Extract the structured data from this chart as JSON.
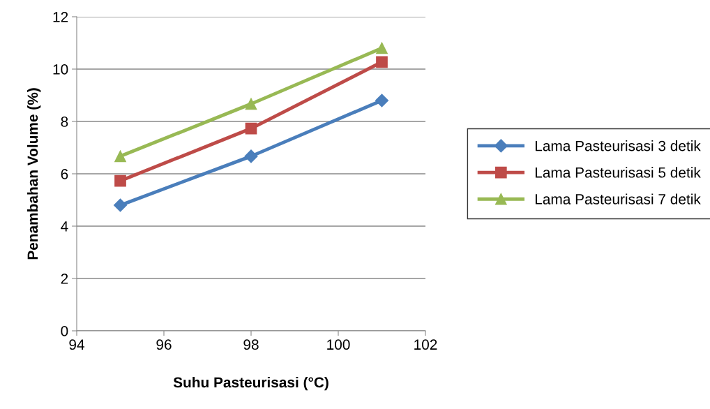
{
  "chart_data": {
    "type": "line",
    "xlabel": "Suhu Pasteurisasi (°C)",
    "ylabel": "Penambahan Volume (%)",
    "x": [
      95,
      98,
      101
    ],
    "series": [
      {
        "name": "Lama Pasteurisasi 3 detik",
        "color": "#4a7ebb",
        "marker": "diamond",
        "values": [
          4.8,
          6.67,
          8.8
        ]
      },
      {
        "name": "Lama Pasteurisasi 5 detik",
        "color": "#be4b48",
        "marker": "square",
        "values": [
          5.73,
          7.73,
          10.27
        ]
      },
      {
        "name": "Lama Pasteurisasi 7 detik",
        "color": "#98b954",
        "marker": "triangle",
        "values": [
          6.67,
          8.67,
          10.8
        ]
      }
    ],
    "xlim": [
      94,
      102
    ],
    "xticks": [
      94,
      96,
      98,
      100,
      102
    ],
    "ylim": [
      0,
      12
    ],
    "yticks": [
      0,
      2,
      4,
      6,
      8,
      10,
      12
    ],
    "grid": "y",
    "legend": "right",
    "line_style": "solid"
  }
}
